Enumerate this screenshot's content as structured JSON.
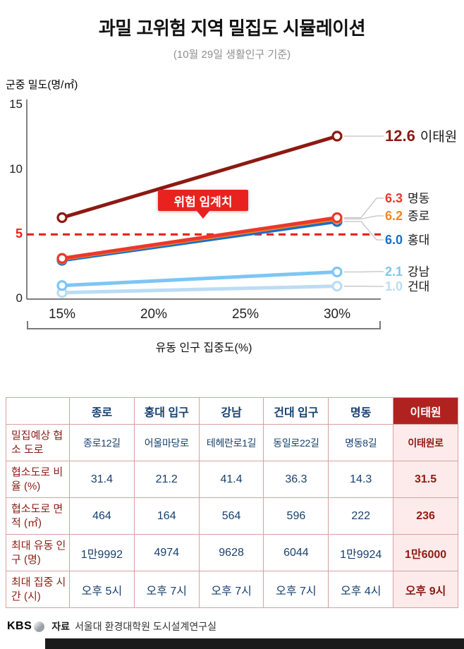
{
  "header": {
    "title": "과밀 고위험 지역 밀집도 시뮬레이션",
    "subtitle": "(10월 29일 생활인구 기준)"
  },
  "chart_data": {
    "type": "line",
    "title": "과밀 고위험 지역 밀집도 시뮬레이션",
    "ylabel": "군중 밀도(명/㎡)",
    "xlabel": "유동 인구 집중도(%)",
    "x": [
      15,
      30
    ],
    "xticks": [
      15,
      20,
      25,
      30
    ],
    "xtick_labels": [
      "15%",
      "20%",
      "25%",
      "30%"
    ],
    "ylim": [
      0,
      15
    ],
    "yticks": [
      0,
      5,
      10,
      15
    ],
    "grid": false,
    "legend_position": "right",
    "threshold": {
      "value": 5,
      "label": "위험 임계치",
      "color": "#e8231f"
    },
    "series": [
      {
        "name": "이태원",
        "values": [
          6.3,
          12.6
        ],
        "end_label": "12.6",
        "color": "#8c1a12"
      },
      {
        "name": "명동",
        "values": [
          3.15,
          6.3
        ],
        "end_label": "6.3",
        "color": "#e8392b"
      },
      {
        "name": "종로",
        "values": [
          3.1,
          6.2
        ],
        "end_label": "6.2",
        "color": "#f5871f"
      },
      {
        "name": "홍대",
        "values": [
          3.0,
          6.0
        ],
        "end_label": "6.0",
        "color": "#176fc9"
      },
      {
        "name": "강남",
        "values": [
          1.05,
          2.1
        ],
        "end_label": "2.1",
        "color": "#7cc6f5"
      },
      {
        "name": "건대",
        "values": [
          0.5,
          1.0
        ],
        "end_label": "1.0",
        "color": "#bcdcf5"
      }
    ]
  },
  "table": {
    "col_headers": [
      "",
      "종로",
      "홍대 입구",
      "강남",
      "건대 입구",
      "명동",
      "이태원"
    ],
    "rows": [
      {
        "label": "밀집예상 협소 도로",
        "values": [
          "종로12길",
          "어울마당로",
          "테헤란로1길",
          "동일로22길",
          "명동8길",
          "이태원로"
        ]
      },
      {
        "label": "협소도로 비율 (%)",
        "values": [
          "31.4",
          "21.2",
          "41.4",
          "36.3",
          "14.3",
          "31.5"
        ]
      },
      {
        "label": "협소도로 면적 (㎡)",
        "values": [
          "464",
          "164",
          "564",
          "596",
          "222",
          "236"
        ]
      },
      {
        "label": "최대 유동 인구 (명)",
        "values": [
          "1만9992",
          "4974",
          "9628",
          "6044",
          "1만9924",
          "1만6000"
        ]
      },
      {
        "label": "최대 집중 시간 (시)",
        "values": [
          "오후 5시",
          "오후 7시",
          "오후 7시",
          "오후 7시",
          "오후 4시",
          "오후 9시"
        ]
      }
    ]
  },
  "footer": {
    "logo": "KBS",
    "source_label": "자료",
    "source": "서울대 환경대학원 도시설계연구실"
  }
}
